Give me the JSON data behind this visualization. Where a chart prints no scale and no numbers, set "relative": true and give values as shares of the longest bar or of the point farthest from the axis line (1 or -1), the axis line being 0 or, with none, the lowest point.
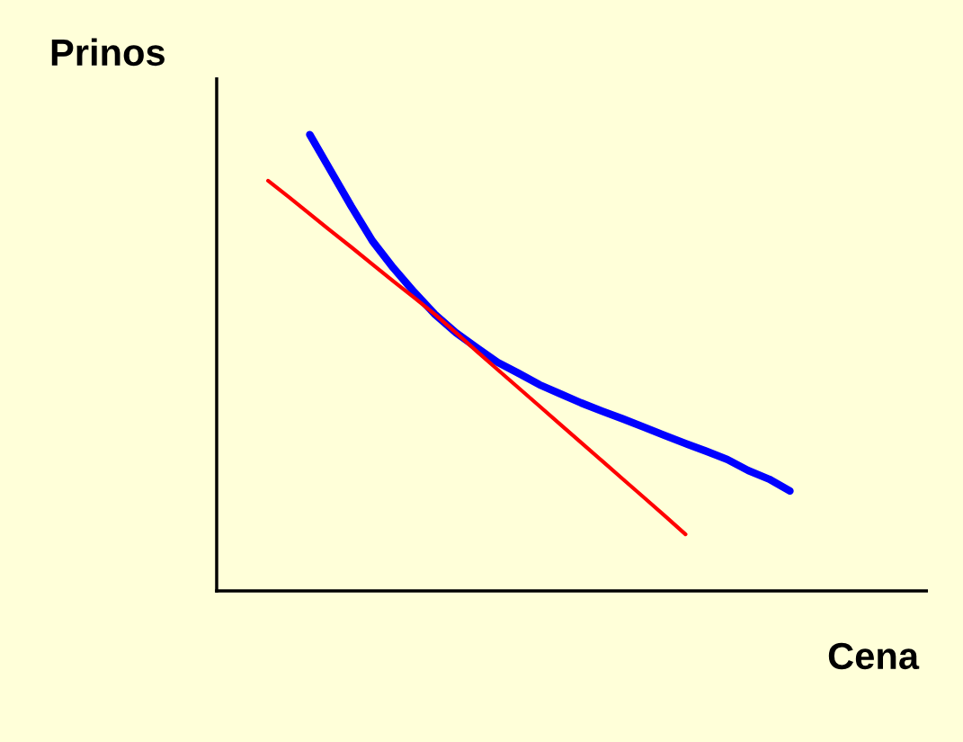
{
  "chart_data": {
    "type": "line",
    "xlabel": "Cena",
    "ylabel": "Prinos",
    "relative": true,
    "categories": [
      null,
      null,
      null,
      null,
      null,
      null,
      null,
      null,
      null,
      null,
      null,
      null,
      null,
      null,
      null,
      null,
      null,
      null,
      null,
      null,
      null,
      null,
      null,
      null,
      null,
      null
    ],
    "series": [
      {
        "color": "#0000ff",
        "values": [
          null,
          null,
          1.0,
          0.921,
          0.842,
          0.767,
          0.708,
          0.655,
          0.606,
          0.566,
          0.533,
          0.501,
          0.477,
          0.452,
          0.432,
          0.412,
          0.394,
          0.377,
          0.359,
          0.341,
          0.323,
          0.306,
          0.288,
          0.264,
          0.245,
          0.219
        ]
      },
      {
        "color": "#ff0000",
        "values": [
          0.899,
          0.863,
          0.826,
          0.789,
          0.753,
          0.716,
          0.679,
          0.643,
          0.606,
          0.566,
          0.525,
          0.485,
          0.445,
          0.405,
          0.365,
          0.325,
          0.285,
          0.245,
          0.205,
          0.165,
          0.124,
          null,
          null,
          null,
          null,
          null
        ]
      }
    ],
    "legend": false,
    "marker": "none",
    "line_style": "solid"
  }
}
